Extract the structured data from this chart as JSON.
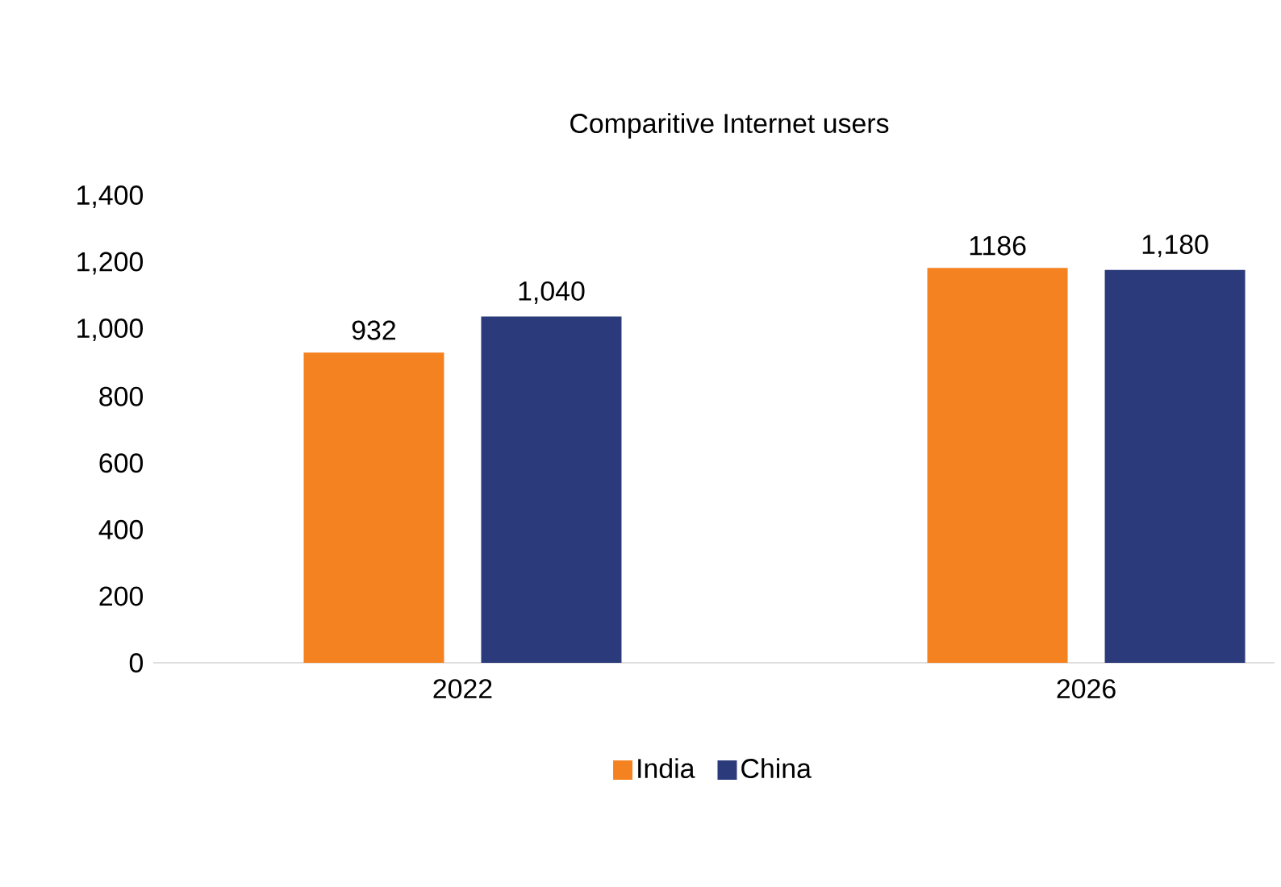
{
  "chart_data": {
    "type": "bar",
    "title": "Comparitive Internet users",
    "categories": [
      "2022",
      "2026"
    ],
    "series": [
      {
        "name": "India",
        "color": "#f58220",
        "values": [
          932,
          1186
        ],
        "value_labels": [
          "932",
          "1186"
        ]
      },
      {
        "name": "China",
        "color": "#2b3a7a",
        "values": [
          1040,
          1180
        ],
        "value_labels": [
          "1,040",
          "1,180"
        ]
      }
    ],
    "ylim": [
      0,
      1400
    ],
    "yticks": [
      {
        "value": 0,
        "label": "0"
      },
      {
        "value": 200,
        "label": "200"
      },
      {
        "value": 400,
        "label": "400"
      },
      {
        "value": 600,
        "label": "600"
      },
      {
        "value": 800,
        "label": "800"
      },
      {
        "value": 1000,
        "label": "1,000"
      },
      {
        "value": 1200,
        "label": "1,200"
      },
      {
        "value": 1400,
        "label": "1,400"
      }
    ],
    "grid": false,
    "legend": "bottom"
  }
}
